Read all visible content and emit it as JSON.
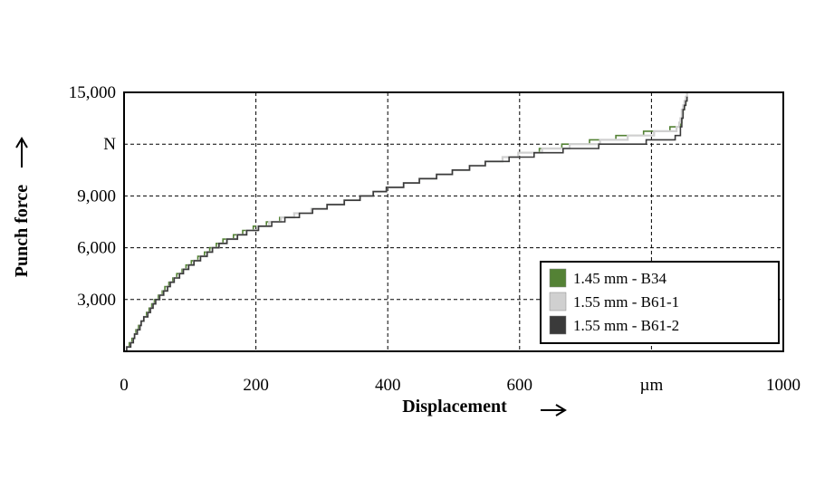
{
  "chart_data": {
    "type": "line",
    "xlabel": "Displacement",
    "ylabel": "Punch force",
    "xlim": [
      0,
      1000
    ],
    "ylim": [
      0,
      15000
    ],
    "x_ticks": [
      {
        "value": 0,
        "label": "0"
      },
      {
        "value": 200,
        "label": "200"
      },
      {
        "value": 400,
        "label": "400"
      },
      {
        "value": 600,
        "label": "600"
      },
      {
        "value": 800,
        "label": "µm"
      },
      {
        "value": 1000,
        "label": "1000"
      }
    ],
    "y_ticks": [
      {
        "value": 3000,
        "label": "3,000"
      },
      {
        "value": 6000,
        "label": "6,000"
      },
      {
        "value": 9000,
        "label": "9,000"
      },
      {
        "value": 12000,
        "label": "N"
      },
      {
        "value": 15000,
        "label": "15,000"
      }
    ],
    "grid": true,
    "legend_position": "bottom-right",
    "series": [
      {
        "name": "1.45 mm - B34",
        "color": "#548235",
        "x": [
          0,
          10,
          25,
          50,
          75,
          100,
          150,
          200,
          250,
          300,
          350,
          400,
          450,
          500,
          550,
          600,
          650,
          700,
          750,
          800,
          830,
          838,
          842,
          848,
          852,
          855
        ],
        "y": [
          0,
          500,
          1700,
          3100,
          4200,
          5100,
          6400,
          7200,
          7800,
          8300,
          8800,
          9400,
          9900,
          10400,
          10900,
          11400,
          11800,
          12100,
          12400,
          12700,
          12900,
          13000,
          13000,
          14000,
          14600,
          15000
        ]
      },
      {
        "name": "1.55 mm - B61-1",
        "color": "#d0d0d0",
        "x": [
          0,
          10,
          25,
          50,
          75,
          100,
          150,
          200,
          250,
          300,
          350,
          400,
          450,
          500,
          550,
          600,
          650,
          700,
          750,
          800,
          830,
          840,
          845,
          850,
          855
        ],
        "y": [
          0,
          450,
          1600,
          3000,
          4100,
          5000,
          6300,
          7100,
          7800,
          8300,
          8800,
          9400,
          9900,
          10400,
          10900,
          11400,
          11750,
          12000,
          12300,
          12600,
          12800,
          12900,
          13800,
          14500,
          15000
        ]
      },
      {
        "name": "1.55 mm - B61-2",
        "color": "#3a3a3a",
        "x": [
          0,
          10,
          25,
          50,
          75,
          100,
          150,
          200,
          250,
          300,
          350,
          400,
          450,
          500,
          550,
          600,
          650,
          700,
          750,
          800,
          830,
          838,
          842,
          848,
          852,
          855
        ],
        "y": [
          0,
          400,
          1600,
          3000,
          4100,
          5000,
          6300,
          7100,
          7700,
          8300,
          8800,
          9400,
          9900,
          10400,
          10900,
          11250,
          11550,
          11800,
          12000,
          12150,
          12300,
          12400,
          12500,
          13900,
          14500,
          15000
        ]
      }
    ]
  }
}
